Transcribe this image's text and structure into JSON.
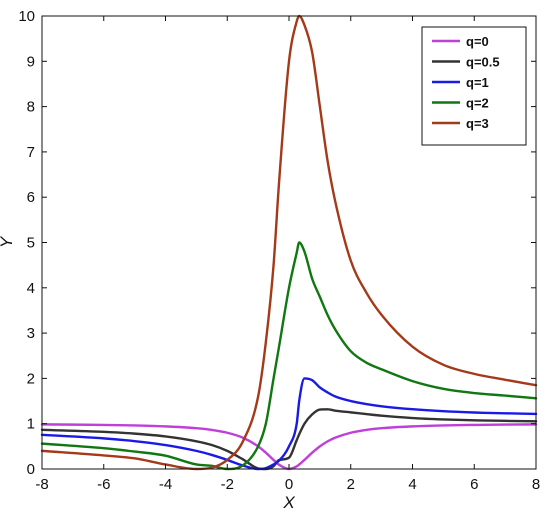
{
  "chart_data": {
    "type": "line",
    "title": "",
    "xlabel": "X",
    "ylabel": "Y",
    "xlim": [
      -8,
      8
    ],
    "ylim": [
      0,
      10
    ],
    "x_ticks": [
      "-8",
      "-6",
      "-4",
      "-2",
      "0",
      "2",
      "4",
      "6",
      "8"
    ],
    "y_ticks": [
      "0",
      "1",
      "2",
      "3",
      "4",
      "5",
      "6",
      "7",
      "8",
      "9",
      "10"
    ],
    "grid": false,
    "legend_position": "top-right",
    "x": [
      -8,
      -6,
      -5,
      -4,
      -3,
      -2.5,
      -2,
      -1.5,
      -1,
      -0.75,
      -0.5,
      -0.33,
      0,
      0.25,
      0.33,
      0.5,
      0.75,
      1,
      1.25,
      1.5,
      2,
      2.5,
      3,
      4,
      5,
      6,
      7,
      8
    ],
    "series": [
      {
        "name": "q=0",
        "color": "#bf3fd9",
        "values": [
          0.985,
          0.973,
          0.962,
          0.941,
          0.9,
          0.862,
          0.8,
          0.692,
          0.5,
          0.36,
          0.2,
          0.098,
          0,
          0.059,
          0.098,
          0.2,
          0.36,
          0.5,
          0.61,
          0.692,
          0.8,
          0.862,
          0.9,
          0.941,
          0.962,
          0.973,
          0.98,
          0.985
        ]
      },
      {
        "name": "q=0.5",
        "color": "#333333",
        "values": [
          0.866,
          0.82,
          0.781,
          0.719,
          0.612,
          0.529,
          0.4,
          0.216,
          0.013,
          0.0,
          0.063,
          0.195,
          0.25,
          0.637,
          0.767,
          1.0,
          1.205,
          1.313,
          1.317,
          1.288,
          1.25,
          1.213,
          1.176,
          1.125,
          1.094,
          1.075,
          1.063,
          1.053
        ]
      },
      {
        "name": "q=1",
        "color": "#1a1ae6",
        "values": [
          0.754,
          0.676,
          0.615,
          0.529,
          0.4,
          0.31,
          0.2,
          0.077,
          0.0,
          0.02,
          0.1,
          0.18,
          0.5,
          1.0,
          1.5,
          2.0,
          1.96,
          1.8,
          1.69,
          1.6,
          1.5,
          1.434,
          1.385,
          1.32,
          1.276,
          1.247,
          1.23,
          1.215
        ]
      },
      {
        "name": "q=2",
        "color": "#117711",
        "values": [
          0.56,
          0.459,
          0.385,
          0.294,
          0.1,
          0.069,
          0.0,
          0.077,
          0.5,
          1.0,
          2.0,
          2.67,
          4.0,
          4.776,
          5.0,
          4.8,
          4.2,
          3.8,
          3.4,
          3.077,
          2.6,
          2.35,
          2.2,
          1.94,
          1.769,
          1.676,
          1.62,
          1.56
        ]
      },
      {
        "name": "q=3",
        "color": "#a33a1a",
        "values": [
          0.4,
          0.3,
          0.235,
          0.1,
          0.0,
          0.03,
          0.2,
          0.6,
          1.6,
          2.8,
          4.5,
          6.25,
          9.0,
          9.88,
          10.0,
          9.8,
          9.2,
          8.0,
          6.8,
          5.9,
          4.6,
          3.9,
          3.4,
          2.7,
          2.3,
          2.1,
          1.97,
          1.85
        ]
      }
    ]
  }
}
